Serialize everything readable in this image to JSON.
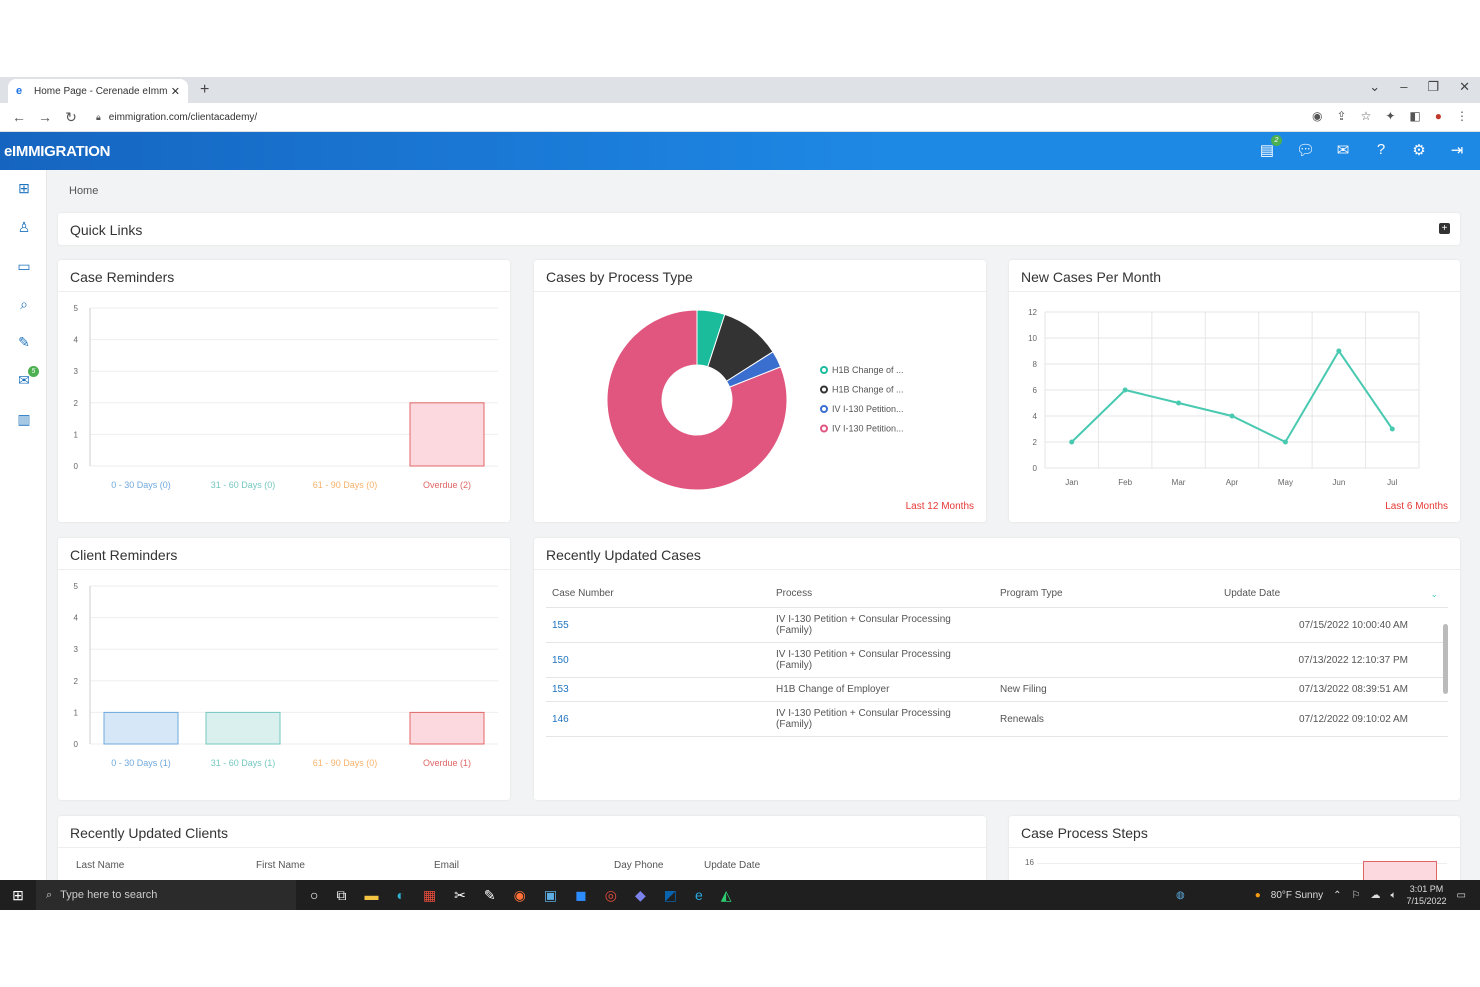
{
  "browser": {
    "tab_title": "Home Page - Cerenade eImmig",
    "url": "eimmigration.com/clientacademy/",
    "nav_back": "←",
    "nav_forward": "→",
    "nav_reload": "↻",
    "new_tab": "+",
    "window_controls": [
      "⌄",
      "–",
      "❐",
      "✕"
    ]
  },
  "app": {
    "logo": "eIMMIGRATION",
    "header_icons": [
      "tasks-icon",
      "chat-icon",
      "message-icon",
      "help-icon",
      "settings-icon",
      "logout-icon"
    ],
    "tasks_badge": "2",
    "sidebar_badge": "5"
  },
  "breadcrumb": "Home",
  "quick_links": {
    "title": "Quick Links",
    "toggle": "+"
  },
  "case_reminders": {
    "title": "Case Reminders",
    "chart_data": {
      "type": "bar",
      "categories": [
        "0 - 30 Days (0)",
        "31 - 60 Days (0)",
        "61 - 90 Days (0)",
        "Overdue (2)"
      ],
      "values": [
        0,
        0,
        0,
        2
      ],
      "ylim": [
        0,
        5
      ],
      "yticks": [
        "0",
        "1",
        "2",
        "3",
        "4",
        "5"
      ],
      "colors": [
        "#6fa8dc",
        "#76c7c0",
        "#f6b26b",
        "#e06666"
      ],
      "fill_colors": [
        "#d6e8f7",
        "#d9f0ee",
        "#fde9d4",
        "#fbd9df"
      ]
    }
  },
  "cases_by_process": {
    "title": "Cases by Process Type",
    "footnote": "Last 12 Months",
    "chart_data": {
      "type": "pie",
      "labels": [
        "H1B Change of ...",
        "H1B Change of ...",
        "IV I-130 Petition...",
        "IV I-130 Petition..."
      ],
      "values": [
        5,
        11,
        3,
        81
      ],
      "colors": [
        "#1abc9c",
        "#333333",
        "#3b6fcf",
        "#e0567e"
      ]
    }
  },
  "new_cases": {
    "title": "New Cases Per Month",
    "footnote": "Last 6 Months",
    "chart_data": {
      "type": "line",
      "categories": [
        "Jan",
        "Feb",
        "Mar",
        "Apr",
        "May",
        "Jun",
        "Jul"
      ],
      "values": [
        2,
        6,
        5,
        4,
        2,
        9,
        3
      ],
      "ylim": [
        0,
        12
      ],
      "yticks": [
        "0",
        "2",
        "4",
        "6",
        "8",
        "10",
        "12"
      ],
      "color": "#48c9b0"
    }
  },
  "client_reminders": {
    "title": "Client Reminders",
    "chart_data": {
      "type": "bar",
      "categories": [
        "0 - 30 Days (1)",
        "31 - 60 Days (1)",
        "61 - 90 Days (0)",
        "Overdue (1)"
      ],
      "values": [
        1,
        1,
        0,
        1
      ],
      "ylim": [
        0,
        5
      ],
      "yticks": [
        "0",
        "1",
        "2",
        "3",
        "4",
        "5"
      ],
      "colors": [
        "#6fa8dc",
        "#76c7c0",
        "#f6b26b",
        "#e06666"
      ],
      "fill_colors": [
        "#d6e8f7",
        "#d9f0ee",
        "#fde9d4",
        "#fbd9df"
      ]
    }
  },
  "recent_cases": {
    "title": "Recently Updated Cases",
    "columns": [
      "Case Number",
      "Process",
      "Program Type",
      "Update Date"
    ],
    "rows": [
      {
        "num": "155",
        "process": "IV I-130 Petition + Consular Processing (Family)",
        "program": "",
        "date": "07/15/2022 10:00:40 AM"
      },
      {
        "num": "150",
        "process": "IV I-130 Petition + Consular Processing (Family)",
        "program": "",
        "date": "07/13/2022 12:10:37 PM"
      },
      {
        "num": "153",
        "process": "H1B Change of Employer",
        "program": "New Filing",
        "date": "07/13/2022 08:39:51 AM"
      },
      {
        "num": "146",
        "process": "IV I-130 Petition + Consular Processing (Family)",
        "program": "Renewals",
        "date": "07/12/2022 09:10:02 AM"
      }
    ]
  },
  "recent_clients": {
    "title": "Recently Updated Clients",
    "columns": [
      "Last Name",
      "First Name",
      "Email",
      "Day Phone",
      "Update Date"
    ]
  },
  "process_steps": {
    "title": "Case Process Steps",
    "first_tick": "16"
  },
  "taskbar": {
    "search_placeholder": "Type here to search",
    "weather": "80°F  Sunny",
    "time": "3:01 PM",
    "date": "7/15/2022"
  }
}
